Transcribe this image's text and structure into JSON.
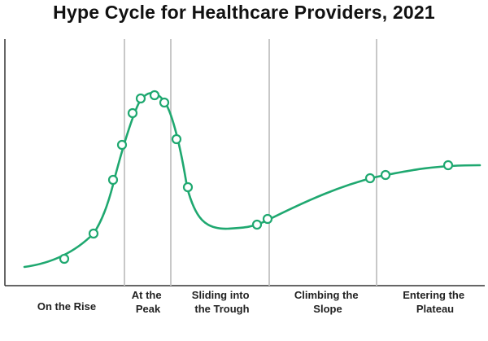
{
  "title": "Hype Cycle for Healthcare Providers, 2021",
  "colors": {
    "curve": "#1fa870",
    "marker_fill": "#ffffff",
    "divider": "#c8c8c8",
    "axis": "#333333"
  },
  "chart_data": {
    "type": "line",
    "title": "Hype Cycle for Healthcare Providers, 2021",
    "xlabel": "",
    "ylabel": "",
    "grid": false,
    "phases": [
      {
        "name": "On the Rise",
        "lines": [
          "On the Rise"
        ]
      },
      {
        "name": "At the Peak",
        "lines": [
          "At the",
          "Peak"
        ]
      },
      {
        "name": "Sliding into the Trough",
        "lines": [
          "Sliding into",
          "the Trough"
        ]
      },
      {
        "name": "Climbing the Slope",
        "lines": [
          "Climbing the",
          "Slope"
        ]
      },
      {
        "name": "Entering the Plateau",
        "lines": [
          "Entering the",
          "Plateau"
        ]
      }
    ]
  }
}
